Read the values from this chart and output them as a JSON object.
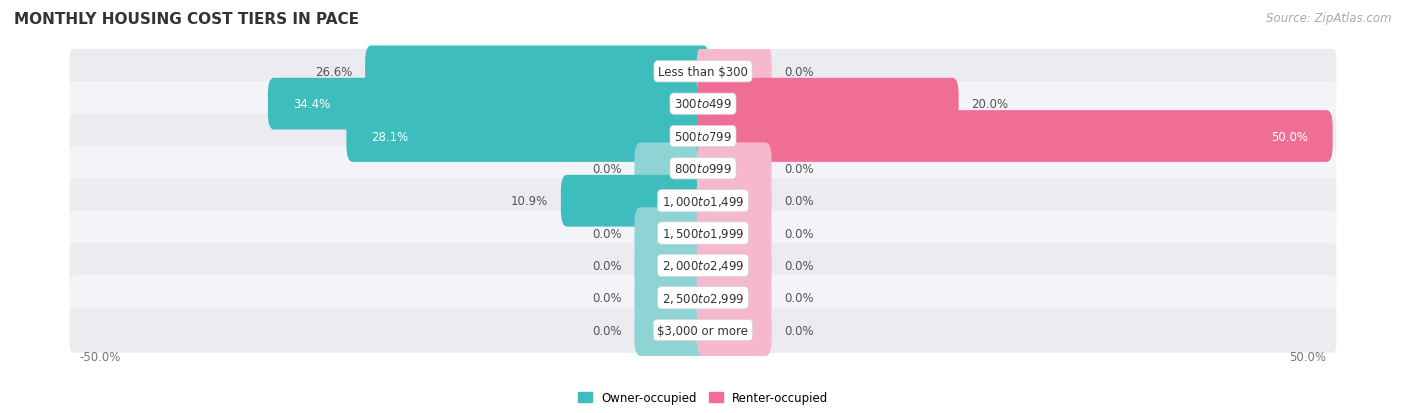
{
  "title": "MONTHLY HOUSING COST TIERS IN PACE",
  "source": "Source: ZipAtlas.com",
  "categories": [
    "Less than $300",
    "$300 to $499",
    "$500 to $799",
    "$800 to $999",
    "$1,000 to $1,499",
    "$1,500 to $1,999",
    "$2,000 to $2,499",
    "$2,500 to $2,999",
    "$3,000 or more"
  ],
  "owner_values": [
    26.6,
    34.4,
    28.1,
    0.0,
    10.9,
    0.0,
    0.0,
    0.0,
    0.0
  ],
  "renter_values": [
    0.0,
    20.0,
    50.0,
    0.0,
    0.0,
    0.0,
    0.0,
    0.0,
    0.0
  ],
  "owner_color": "#3dbdbd",
  "renter_color": "#f06e96",
  "owner_color_light": "#8ed4d4",
  "renter_color_light": "#f5b8cc",
  "bg_row_color": "#eeeeee",
  "bg_row_alt": "#f5f5f5",
  "max_val": 50.0,
  "stub_size": 5.0,
  "label_color_dark": "#555555",
  "label_color_white": "#ffffff",
  "font_size": 8.5,
  "title_fontsize": 11,
  "source_fontsize": 8.5
}
